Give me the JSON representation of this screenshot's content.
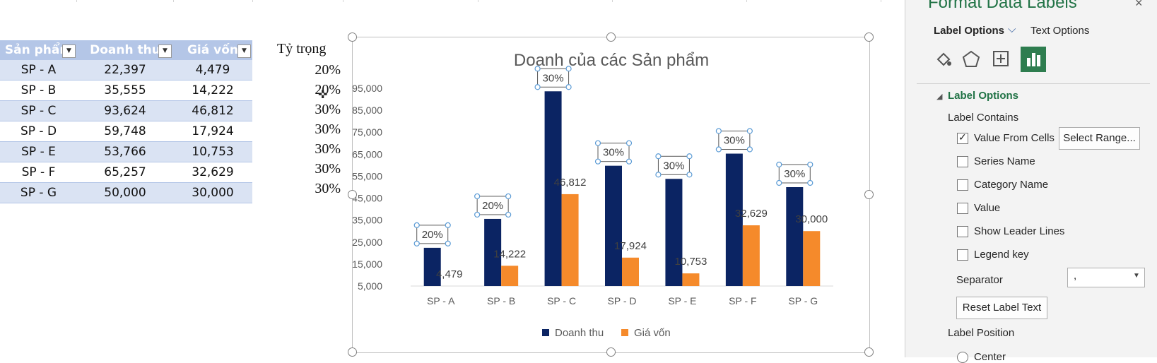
{
  "table": {
    "headers": [
      "Sản phẩm",
      "Doanh thu",
      "Giá vốn"
    ],
    "rows": [
      [
        "SP - A",
        "22,397",
        "4,479"
      ],
      [
        "SP - B",
        "35,555",
        "14,222"
      ],
      [
        "SP - C",
        "93,624",
        "46,812"
      ],
      [
        "SP - D",
        "59,748",
        "17,924"
      ],
      [
        "SP - E",
        "53,766",
        "10,753"
      ],
      [
        "SP - F",
        "65,257",
        "32,629"
      ],
      [
        "SP - G",
        "50,000",
        "30,000"
      ]
    ]
  },
  "ratio": {
    "header": "Tỷ trọng",
    "values": [
      "20%",
      "20%",
      "30%",
      "30%",
      "30%",
      "30%",
      "30%"
    ]
  },
  "chart_data": {
    "type": "bar",
    "title": "Doanh của các Sản phẩm",
    "categories": [
      "SP - A",
      "SP - B",
      "SP - C",
      "SP - D",
      "SP - E",
      "SP - F",
      "SP - G"
    ],
    "series": [
      {
        "name": "Doanh thu",
        "values": [
          22397,
          35555,
          93624,
          59748,
          53766,
          65257,
          50000
        ],
        "color": "#0b2463",
        "labels": [
          "20%",
          "20%",
          "30%",
          "30%",
          "30%",
          "30%",
          "30%"
        ]
      },
      {
        "name": "Giá vốn",
        "values": [
          4479,
          14222,
          46812,
          17924,
          10753,
          32629,
          30000
        ],
        "color": "#f58a2b",
        "labels": [
          "4,479",
          "14,222",
          "46,812",
          "17,924",
          "10,753",
          "32,629",
          "30,000"
        ]
      }
    ],
    "y_ticks": [
      "95,000",
      "85,000",
      "75,000",
      "65,000",
      "55,000",
      "45,000",
      "35,000",
      "25,000",
      "15,000",
      "5,000"
    ],
    "ylim": [
      5000,
      95000
    ],
    "legend_position": "bottom",
    "grid": false
  },
  "pane": {
    "title": "Format Data Labels",
    "tabs": [
      "Label Options",
      "Text Options"
    ],
    "section": "Label Options",
    "label_contains": "Label Contains",
    "options": [
      {
        "label": "Value From Cells",
        "checked": true
      },
      {
        "label": "Series Name",
        "checked": false
      },
      {
        "label": "Category Name",
        "checked": false
      },
      {
        "label": "Value",
        "checked": false
      },
      {
        "label": "Show Leader Lines",
        "checked": false
      },
      {
        "label": "Legend key",
        "checked": false
      }
    ],
    "select_range": "Select Range...",
    "separator_label": "Separator",
    "separator_value": ",",
    "reset_label": "Reset Label Text",
    "label_position": "Label Position",
    "position_first": "Center"
  }
}
